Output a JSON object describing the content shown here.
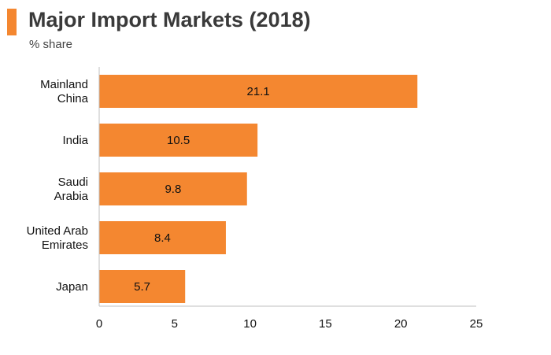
{
  "accent_color": "#f48730",
  "chart_data": {
    "type": "bar",
    "orientation": "horizontal",
    "title": "Major Import Markets (2018)",
    "subtitle": "% share",
    "categories": [
      [
        "Mainland",
        "China"
      ],
      [
        "India"
      ],
      [
        "Saudi",
        "Arabia"
      ],
      [
        "United Arab",
        "Emirates"
      ],
      [
        "Japan"
      ]
    ],
    "values": [
      21.1,
      10.5,
      9.8,
      8.4,
      5.7
    ],
    "value_labels": [
      "21.1",
      "10.5",
      "9.8",
      "8.4",
      "5.7"
    ],
    "xlim": [
      0,
      25
    ],
    "xticks": [
      "0",
      "5",
      "10",
      "15",
      "20",
      "25"
    ],
    "grid": false,
    "legend": "none"
  }
}
